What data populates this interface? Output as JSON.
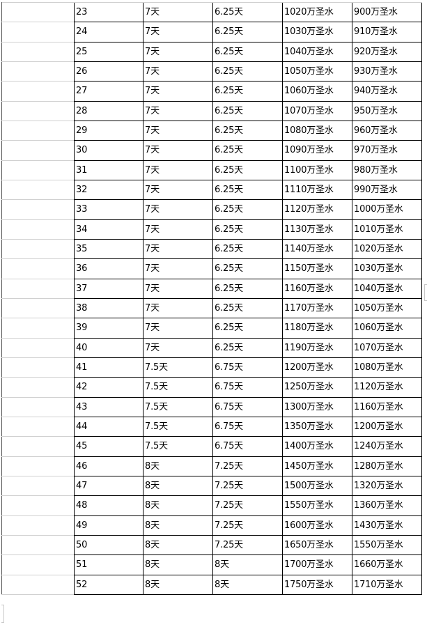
{
  "table": {
    "rows": [
      [
        "23",
        "7天",
        "6.25天",
        "1020万圣水",
        "900万圣水"
      ],
      [
        "24",
        "7天",
        "6.25天",
        "1030万圣水",
        "910万圣水"
      ],
      [
        "25",
        "7天",
        "6.25天",
        "1040万圣水",
        "920万圣水"
      ],
      [
        "26",
        "7天",
        "6.25天",
        "1050万圣水",
        "930万圣水"
      ],
      [
        "27",
        "7天",
        "6.25天",
        "1060万圣水",
        "940万圣水"
      ],
      [
        "28",
        "7天",
        "6.25天",
        "1070万圣水",
        "950万圣水"
      ],
      [
        "29",
        "7天",
        "6.25天",
        "1080万圣水",
        "960万圣水"
      ],
      [
        "30",
        "7天",
        "6.25天",
        "1090万圣水",
        "970万圣水"
      ],
      [
        "31",
        "7天",
        "6.25天",
        "1100万圣水",
        "980万圣水"
      ],
      [
        "32",
        "7天",
        "6.25天",
        "1110万圣水",
        "990万圣水"
      ],
      [
        "33",
        "7天",
        "6.25天",
        "1120万圣水",
        "1000万圣水"
      ],
      [
        "34",
        "7天",
        "6.25天",
        "1130万圣水",
        "1010万圣水"
      ],
      [
        "35",
        "7天",
        "6.25天",
        "1140万圣水",
        "1020万圣水"
      ],
      [
        "36",
        "7天",
        "6.25天",
        "1150万圣水",
        "1030万圣水"
      ],
      [
        "37",
        "7天",
        "6.25天",
        "1160万圣水",
        "1040万圣水"
      ],
      [
        "38",
        "7天",
        "6.25天",
        "1170万圣水",
        "1050万圣水"
      ],
      [
        "39",
        "7天",
        "6.25天",
        "1180万圣水",
        "1060万圣水"
      ],
      [
        "40",
        "7天",
        "6.25天",
        "1190万圣水",
        "1070万圣水"
      ],
      [
        "41",
        "7.5天",
        "6.75天",
        "1200万圣水",
        "1080万圣水"
      ],
      [
        "42",
        "7.5天",
        "6.75天",
        "1250万圣水",
        "1120万圣水"
      ],
      [
        "43",
        "7.5天",
        "6.75天",
        "1300万圣水",
        "1160万圣水"
      ],
      [
        "44",
        "7.5天",
        "6.75天",
        "1350万圣水",
        "1200万圣水"
      ],
      [
        "45",
        "7.5天",
        "6.75天",
        "1400万圣水",
        "1240万圣水"
      ],
      [
        "46",
        "8天",
        "7.25天",
        "1450万圣水",
        "1280万圣水"
      ],
      [
        "47",
        "8天",
        "7.25天",
        "1500万圣水",
        "1320万圣水"
      ],
      [
        "48",
        "8天",
        "7.25天",
        "1550万圣水",
        "1360万圣水"
      ],
      [
        "49",
        "8天",
        "7.25天",
        "1600万圣水",
        "1430万圣水"
      ],
      [
        "50",
        "8天",
        "7.25天",
        "1650万圣水",
        "1550万圣水"
      ],
      [
        "51",
        "8天",
        "8天",
        "1700万圣水",
        "1660万圣水"
      ],
      [
        "52",
        "8天",
        "8天",
        "1750万圣水",
        "1710万圣水"
      ]
    ]
  }
}
